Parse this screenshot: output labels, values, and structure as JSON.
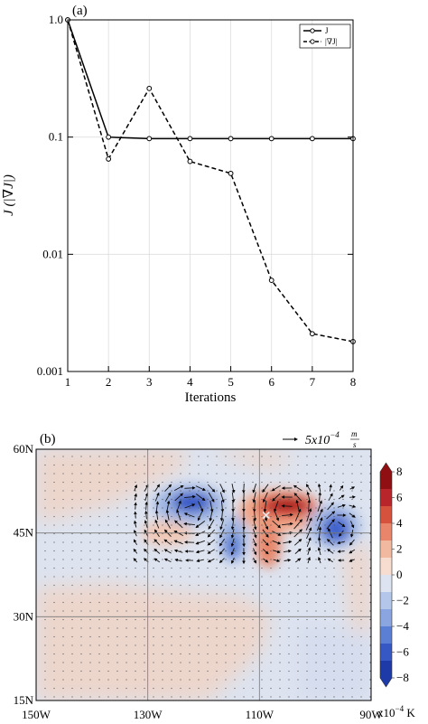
{
  "chart_data": [
    {
      "type": "line",
      "panel_label": "(a)",
      "xlabel": "Iterations",
      "ylabel": "J (|∇J|)",
      "x": [
        1,
        2,
        3,
        4,
        5,
        6,
        7,
        8
      ],
      "xlim": [
        1,
        8
      ],
      "ylim": [
        0.001,
        1.0
      ],
      "yscale": "log",
      "y_tick_values": [
        1.0,
        0.1,
        0.01,
        0.001
      ],
      "y_tick_labels": [
        "1.0",
        "0.1",
        "0.01",
        "0.001"
      ],
      "x_tick_labels": [
        "1",
        "2",
        "3",
        "4",
        "5",
        "6",
        "7",
        "8"
      ],
      "grid": true,
      "legend_position": "top-right",
      "series": [
        {
          "name": "J",
          "style": "solid",
          "values": [
            1.0,
            0.1,
            0.097,
            0.097,
            0.097,
            0.097,
            0.097,
            0.097
          ]
        },
        {
          "name": "|∇J|",
          "style": "dashed",
          "values": [
            1.0,
            0.065,
            0.26,
            0.062,
            0.049,
            0.006,
            0.0021,
            0.0018
          ]
        }
      ]
    },
    {
      "type": "heatmap",
      "panel_label": "(b)",
      "x_tick_labels": [
        "150W",
        "130W",
        "110W",
        "90W"
      ],
      "y_tick_labels": [
        "60N",
        "45N",
        "30N",
        "15N"
      ],
      "xlim_lon": [
        -150,
        -90
      ],
      "ylim_lat": [
        15,
        60
      ],
      "vector_reference_label": "5x10",
      "vector_reference_exp": "−4",
      "vector_reference_unit_num": "m",
      "vector_reference_unit_den": "s",
      "colorbar_tick_labels": [
        "8",
        "6",
        "4",
        "2",
        "0",
        "−2",
        "−4",
        "−6",
        "−8"
      ],
      "colorbar_unit": "x10",
      "colorbar_unit_exp": "−4",
      "colorbar_unit_suffix": " K",
      "colorbar_range": [
        -8,
        8
      ],
      "marker": {
        "lon": -108.8,
        "lat": 48.3,
        "symbol": "×"
      },
      "colors": {
        "positive_max": "#9b1010",
        "negative_max": "#1a3fb0",
        "neutral": "#e8e8e8",
        "background_warm": "#f1d9cd",
        "background_cool": "#d3ddee"
      }
    }
  ]
}
